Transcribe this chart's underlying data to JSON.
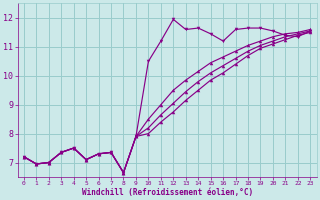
{
  "bg_color": "#cce9e9",
  "line_color": "#880088",
  "grid_color": "#99cccc",
  "xlabel": "Windchill (Refroidissement éolien,°C)",
  "tick_color": "#880088",
  "xlim": [
    -0.5,
    23.5
  ],
  "ylim": [
    6.5,
    12.5
  ],
  "yticks": [
    7,
    8,
    9,
    10,
    11,
    12
  ],
  "xticks": [
    0,
    1,
    2,
    3,
    4,
    5,
    6,
    7,
    8,
    9,
    10,
    11,
    12,
    13,
    14,
    15,
    16,
    17,
    18,
    19,
    20,
    21,
    22,
    23
  ],
  "series1_x": [
    0,
    1,
    2,
    3,
    4,
    5,
    6,
    7,
    8,
    9,
    10,
    11,
    12,
    13,
    14,
    15,
    16,
    17,
    18,
    19,
    20,
    21,
    22,
    23
  ],
  "series1_y": [
    7.2,
    6.95,
    7.0,
    7.35,
    7.5,
    7.1,
    7.3,
    7.35,
    6.65,
    7.9,
    10.5,
    11.2,
    11.95,
    11.6,
    11.65,
    11.45,
    11.2,
    11.6,
    11.65,
    11.65,
    11.55,
    11.4,
    11.35,
    11.55
  ],
  "series2_x": [
    0,
    1,
    2,
    3,
    4,
    5,
    6,
    7,
    8,
    9,
    10,
    11,
    12,
    13,
    14,
    15,
    16,
    17,
    18,
    19,
    20,
    21,
    22,
    23
  ],
  "series2_y": [
    7.2,
    6.95,
    7.0,
    7.35,
    7.5,
    7.1,
    7.3,
    7.35,
    6.65,
    7.9,
    8.5,
    9.0,
    9.5,
    9.85,
    10.15,
    10.45,
    10.65,
    10.85,
    11.05,
    11.2,
    11.35,
    11.45,
    11.5,
    11.6
  ],
  "series3_x": [
    0,
    1,
    2,
    3,
    4,
    5,
    6,
    7,
    8,
    9,
    10,
    11,
    12,
    13,
    14,
    15,
    16,
    17,
    18,
    19,
    20,
    21,
    22,
    23
  ],
  "series3_y": [
    7.2,
    6.95,
    7.0,
    7.35,
    7.5,
    7.1,
    7.3,
    7.35,
    6.65,
    7.9,
    8.2,
    8.65,
    9.05,
    9.45,
    9.8,
    10.1,
    10.35,
    10.6,
    10.85,
    11.05,
    11.2,
    11.35,
    11.45,
    11.55
  ],
  "series4_x": [
    0,
    1,
    2,
    3,
    4,
    5,
    6,
    7,
    8,
    9,
    10,
    11,
    12,
    13,
    14,
    15,
    16,
    17,
    18,
    19,
    20,
    21,
    22,
    23
  ],
  "series4_y": [
    7.2,
    6.95,
    7.0,
    7.35,
    7.5,
    7.1,
    7.3,
    7.35,
    6.65,
    7.9,
    8.0,
    8.4,
    8.75,
    9.15,
    9.5,
    9.85,
    10.1,
    10.4,
    10.7,
    10.95,
    11.1,
    11.25,
    11.4,
    11.5
  ]
}
